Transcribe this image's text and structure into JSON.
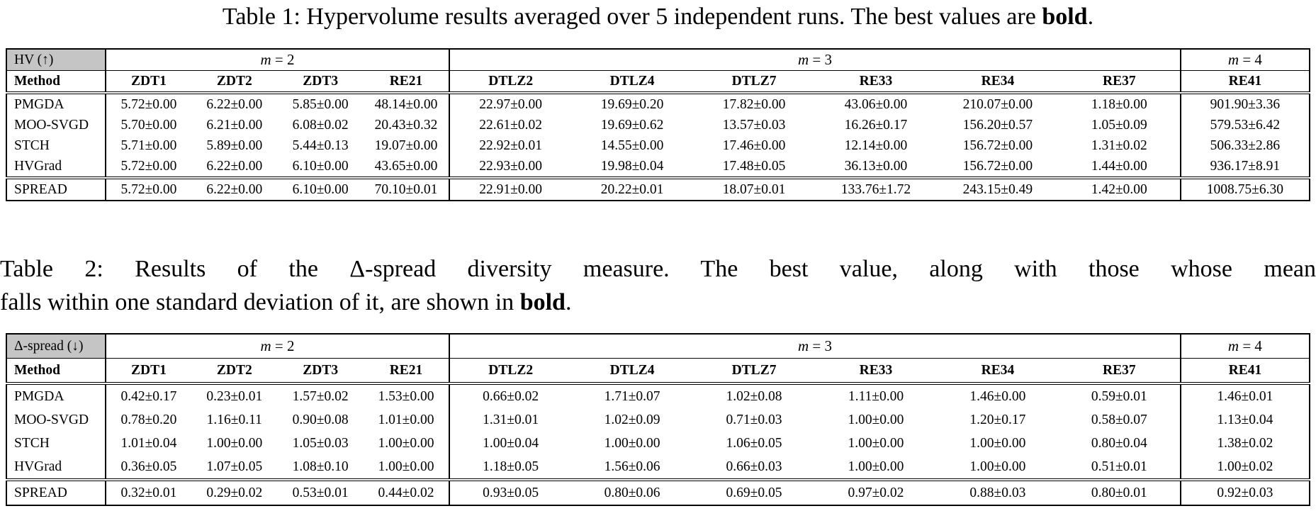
{
  "page": {
    "background": "#ffffff",
    "text_color": "#000000",
    "metric_cell_bg": "#c5c5c5",
    "rule_color": "#000000"
  },
  "captions": {
    "table1_text": "Table 1: Hypervolume results averaged over 5 independent runs. The best values are ",
    "table1_bold_word": "bold",
    "table1_period": ".",
    "table2_line1": "Table 2: Results of the Δ-spread diversity measure. The best value, along with those whose mean",
    "table2_line2_text": "falls within one standard deviation of it, are shown in ",
    "table2_bold_word": "bold",
    "table2_period": "."
  },
  "tables": [
    {
      "id": "hv-table",
      "metric_label": "HV (↑)",
      "method_header": "Method",
      "groups": [
        {
          "var": "m",
          "eq": "= 2",
          "span": 4
        },
        {
          "var": "m",
          "eq": "= 3",
          "span": 6
        },
        {
          "var": "m",
          "eq": "= 4",
          "span": 1
        }
      ],
      "columns": [
        "ZDT1",
        "ZDT2",
        "ZDT3",
        "RE21",
        "DTLZ2",
        "DTLZ4",
        "DTLZ7",
        "RE33",
        "RE34",
        "RE37",
        "RE41"
      ],
      "rows": [
        {
          "method": "PMGDA",
          "bold_method": false,
          "cells": [
            {
              "v": "5.72±0.00",
              "b": true
            },
            {
              "v": "6.22±0.00",
              "b": true
            },
            {
              "v": "5.85±0.00",
              "b": false
            },
            {
              "v": "48.14±0.00",
              "b": false
            },
            {
              "v": "22.97±0.00",
              "b": true
            },
            {
              "v": "19.69±0.20",
              "b": false
            },
            {
              "v": "17.82±0.00",
              "b": false
            },
            {
              "v": "43.06±0.00",
              "b": false
            },
            {
              "v": "210.07±0.00",
              "b": false
            },
            {
              "v": "1.18±0.00",
              "b": false
            },
            {
              "v": "901.90±3.36",
              "b": false
            }
          ]
        },
        {
          "method": "MOO-SVGD",
          "bold_method": false,
          "cells": [
            {
              "v": "5.70±0.00",
              "b": false
            },
            {
              "v": "6.21±0.00",
              "b": false
            },
            {
              "v": "6.08±0.02",
              "b": false
            },
            {
              "v": "20.43±0.32",
              "b": false
            },
            {
              "v": "22.61±0.02",
              "b": false
            },
            {
              "v": "19.69±0.62",
              "b": false
            },
            {
              "v": "13.57±0.03",
              "b": false
            },
            {
              "v": "16.26±0.17",
              "b": false
            },
            {
              "v": "156.20±0.57",
              "b": false
            },
            {
              "v": "1.05±0.09",
              "b": false
            },
            {
              "v": "579.53±6.42",
              "b": false
            }
          ]
        },
        {
          "method": "STCH",
          "bold_method": false,
          "cells": [
            {
              "v": "5.71±0.00",
              "b": false
            },
            {
              "v": "5.89±0.00",
              "b": false
            },
            {
              "v": "5.44±0.13",
              "b": false
            },
            {
              "v": "19.07±0.00",
              "b": false
            },
            {
              "v": "22.92±0.01",
              "b": false
            },
            {
              "v": "14.55±0.00",
              "b": false
            },
            {
              "v": "17.46±0.00",
              "b": false
            },
            {
              "v": "12.14±0.00",
              "b": false
            },
            {
              "v": "156.72±0.00",
              "b": false
            },
            {
              "v": "1.31±0.02",
              "b": false
            },
            {
              "v": "506.33±2.86",
              "b": false
            }
          ]
        },
        {
          "method": "HVGrad",
          "bold_method": false,
          "cells": [
            {
              "v": "5.72±0.00",
              "b": true
            },
            {
              "v": "6.22±0.00",
              "b": true
            },
            {
              "v": "6.10±0.00",
              "b": true
            },
            {
              "v": "43.65±0.00",
              "b": false
            },
            {
              "v": "22.93±0.00",
              "b": false
            },
            {
              "v": "19.98±0.04",
              "b": false
            },
            {
              "v": "17.48±0.05",
              "b": false
            },
            {
              "v": "36.13±0.00",
              "b": false
            },
            {
              "v": "156.72±0.00",
              "b": false
            },
            {
              "v": "1.44±0.00",
              "b": true
            },
            {
              "v": "936.17±8.91",
              "b": false
            }
          ]
        },
        {
          "method": "SPREAD",
          "bold_method": true,
          "cells": [
            {
              "v": "5.72±0.00",
              "b": true
            },
            {
              "v": "6.22±0.00",
              "b": true
            },
            {
              "v": "6.10±0.00",
              "b": true
            },
            {
              "v": "70.10±0.01",
              "b": true
            },
            {
              "v": "22.91±0.00",
              "b": false
            },
            {
              "v": "20.22±0.01",
              "b": true
            },
            {
              "v": "18.07±0.01",
              "b": true
            },
            {
              "v": "133.76±1.72",
              "b": true
            },
            {
              "v": "243.15±0.49",
              "b": true
            },
            {
              "v": "1.42±0.00",
              "b": false
            },
            {
              "v": "1008.75±6.30",
              "b": true
            }
          ]
        }
      ]
    },
    {
      "id": "spread-table",
      "metric_label": "Δ-spread (↓)",
      "method_header": "Method",
      "groups": [
        {
          "var": "m",
          "eq": "= 2",
          "span": 4
        },
        {
          "var": "m",
          "eq": "= 3",
          "span": 6
        },
        {
          "var": "m",
          "eq": "= 4",
          "span": 1
        }
      ],
      "columns": [
        "ZDT1",
        "ZDT2",
        "ZDT3",
        "RE21",
        "DTLZ2",
        "DTLZ4",
        "DTLZ7",
        "RE33",
        "RE34",
        "RE37",
        "RE41"
      ],
      "rows": [
        {
          "method": "PMGDA",
          "bold_method": false,
          "cells": [
            {
              "v": "0.42±0.17",
              "b": false
            },
            {
              "v": "0.23±0.01",
              "b": true
            },
            {
              "v": "1.57±0.02",
              "b": false
            },
            {
              "v": "1.53±0.00",
              "b": false
            },
            {
              "v": "0.66±0.02",
              "b": true
            },
            {
              "v": "1.71±0.07",
              "b": false
            },
            {
              "v": "1.02±0.08",
              "b": false
            },
            {
              "v": "1.11±0.00",
              "b": false
            },
            {
              "v": "1.46±0.00",
              "b": false
            },
            {
              "v": "0.59±0.01",
              "b": false
            },
            {
              "v": "1.46±0.01",
              "b": false
            }
          ]
        },
        {
          "method": "MOO-SVGD",
          "bold_method": false,
          "cells": [
            {
              "v": "0.78±0.20",
              "b": false
            },
            {
              "v": "1.16±0.11",
              "b": false
            },
            {
              "v": "0.90±0.08",
              "b": false
            },
            {
              "v": "1.01±0.00",
              "b": false
            },
            {
              "v": "1.31±0.01",
              "b": false
            },
            {
              "v": "1.02±0.09",
              "b": false
            },
            {
              "v": "0.71±0.03",
              "b": false
            },
            {
              "v": "1.00±0.00",
              "b": false
            },
            {
              "v": "1.20±0.17",
              "b": false
            },
            {
              "v": "0.58±0.07",
              "b": false
            },
            {
              "v": "1.13±0.04",
              "b": false
            }
          ]
        },
        {
          "method": "STCH",
          "bold_method": false,
          "cells": [
            {
              "v": "1.01±0.04",
              "b": false
            },
            {
              "v": "1.00±0.00",
              "b": false
            },
            {
              "v": "1.05±0.03",
              "b": false
            },
            {
              "v": "1.00±0.00",
              "b": false
            },
            {
              "v": "1.00±0.04",
              "b": false
            },
            {
              "v": "1.00±0.00",
              "b": false
            },
            {
              "v": "1.06±0.05",
              "b": false
            },
            {
              "v": "1.00±0.00",
              "b": false
            },
            {
              "v": "1.00±0.00",
              "b": false
            },
            {
              "v": "0.80±0.04",
              "b": false
            },
            {
              "v": "1.38±0.02",
              "b": false
            }
          ]
        },
        {
          "method": "HVGrad",
          "bold_method": false,
          "cells": [
            {
              "v": "0.36±0.05",
              "b": false
            },
            {
              "v": "1.07±0.05",
              "b": false
            },
            {
              "v": "1.08±0.10",
              "b": false
            },
            {
              "v": "1.00±0.00",
              "b": false
            },
            {
              "v": "1.18±0.05",
              "b": false
            },
            {
              "v": "1.56±0.06",
              "b": false
            },
            {
              "v": "0.66±0.03",
              "b": true
            },
            {
              "v": "1.00±0.00",
              "b": false
            },
            {
              "v": "1.00±0.00",
              "b": false
            },
            {
              "v": "0.51±0.01",
              "b": true
            },
            {
              "v": "1.00±0.02",
              "b": false
            }
          ]
        },
        {
          "method": "SPREAD",
          "bold_method": true,
          "cells": [
            {
              "v": "0.32±0.01",
              "b": true
            },
            {
              "v": "0.29±0.02",
              "b": false
            },
            {
              "v": "0.53±0.01",
              "b": true
            },
            {
              "v": "0.44±0.02",
              "b": true
            },
            {
              "v": "0.93±0.05",
              "b": false
            },
            {
              "v": "0.80±0.06",
              "b": true
            },
            {
              "v": "0.69±0.05",
              "b": true
            },
            {
              "v": "0.97±0.02",
              "b": true
            },
            {
              "v": "0.88±0.03",
              "b": true
            },
            {
              "v": "0.80±0.01",
              "b": false
            },
            {
              "v": "0.92±0.03",
              "b": true
            }
          ]
        }
      ]
    }
  ]
}
